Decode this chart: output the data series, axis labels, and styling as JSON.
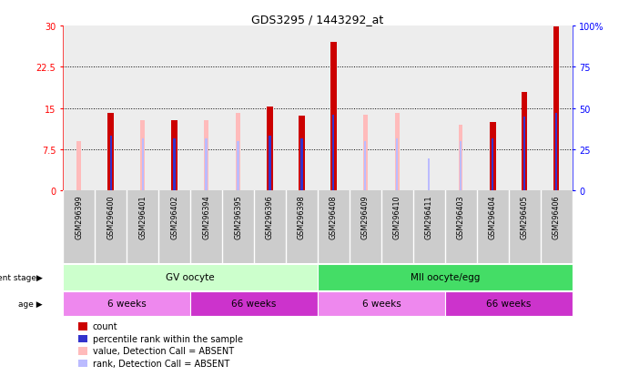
{
  "title": "GDS3295 / 1443292_at",
  "samples": [
    "GSM296399",
    "GSM296400",
    "GSM296401",
    "GSM296402",
    "GSM296394",
    "GSM296395",
    "GSM296396",
    "GSM296398",
    "GSM296408",
    "GSM296409",
    "GSM296410",
    "GSM296411",
    "GSM296403",
    "GSM296404",
    "GSM296405",
    "GSM296406"
  ],
  "count_values": [
    0,
    14.2,
    0,
    12.8,
    0,
    0,
    15.2,
    13.7,
    27.0,
    0,
    0,
    0,
    0,
    12.5,
    18.0,
    29.8
  ],
  "rank_values": [
    0,
    10.0,
    0,
    9.5,
    0,
    9.5,
    10.0,
    9.5,
    13.8,
    0,
    0,
    0,
    0,
    9.5,
    13.5,
    14.2
  ],
  "absent_value_bars": [
    9.0,
    0,
    12.8,
    0,
    12.8,
    14.2,
    0,
    0,
    0,
    13.8,
    14.2,
    0,
    12.0,
    0,
    0,
    0
  ],
  "absent_rank_bars": [
    0,
    0,
    9.5,
    0,
    9.5,
    9.0,
    0,
    0,
    0,
    9.0,
    9.5,
    5.8,
    9.0,
    0,
    0,
    0
  ],
  "ylim_left": [
    0,
    30
  ],
  "ylim_right": [
    0,
    100
  ],
  "yticks_left": [
    0,
    7.5,
    15,
    22.5,
    30
  ],
  "ytick_labels_left": [
    "0",
    "7.5",
    "15",
    "22.5",
    "30"
  ],
  "yticks_right": [
    0,
    25,
    50,
    75,
    100
  ],
  "ytick_labels_right": [
    "0",
    "25",
    "50",
    "75",
    "100%"
  ],
  "grid_lines": [
    7.5,
    15,
    22.5
  ],
  "count_color": "#cc0000",
  "rank_color": "#3333cc",
  "absent_value_color": "#ffbbbb",
  "absent_rank_color": "#bbbbff",
  "col_bg_color": "#cccccc",
  "dev_stage_groups": [
    {
      "label": "GV oocyte",
      "start": 0,
      "end": 7,
      "color": "#ccffcc"
    },
    {
      "label": "MII oocyte/egg",
      "start": 8,
      "end": 15,
      "color": "#44dd66"
    }
  ],
  "age_groups": [
    {
      "label": "6 weeks",
      "start": 0,
      "end": 3,
      "color": "#ee88ee"
    },
    {
      "label": "66 weeks",
      "start": 4,
      "end": 7,
      "color": "#cc33cc"
    },
    {
      "label": "6 weeks",
      "start": 8,
      "end": 11,
      "color": "#ee88ee"
    },
    {
      "label": "66 weeks",
      "start": 12,
      "end": 15,
      "color": "#cc33cc"
    }
  ],
  "legend_labels": [
    "count",
    "percentile rank within the sample",
    "value, Detection Call = ABSENT",
    "rank, Detection Call = ABSENT"
  ],
  "legend_colors": [
    "#cc0000",
    "#3333cc",
    "#ffbbbb",
    "#bbbbff"
  ]
}
